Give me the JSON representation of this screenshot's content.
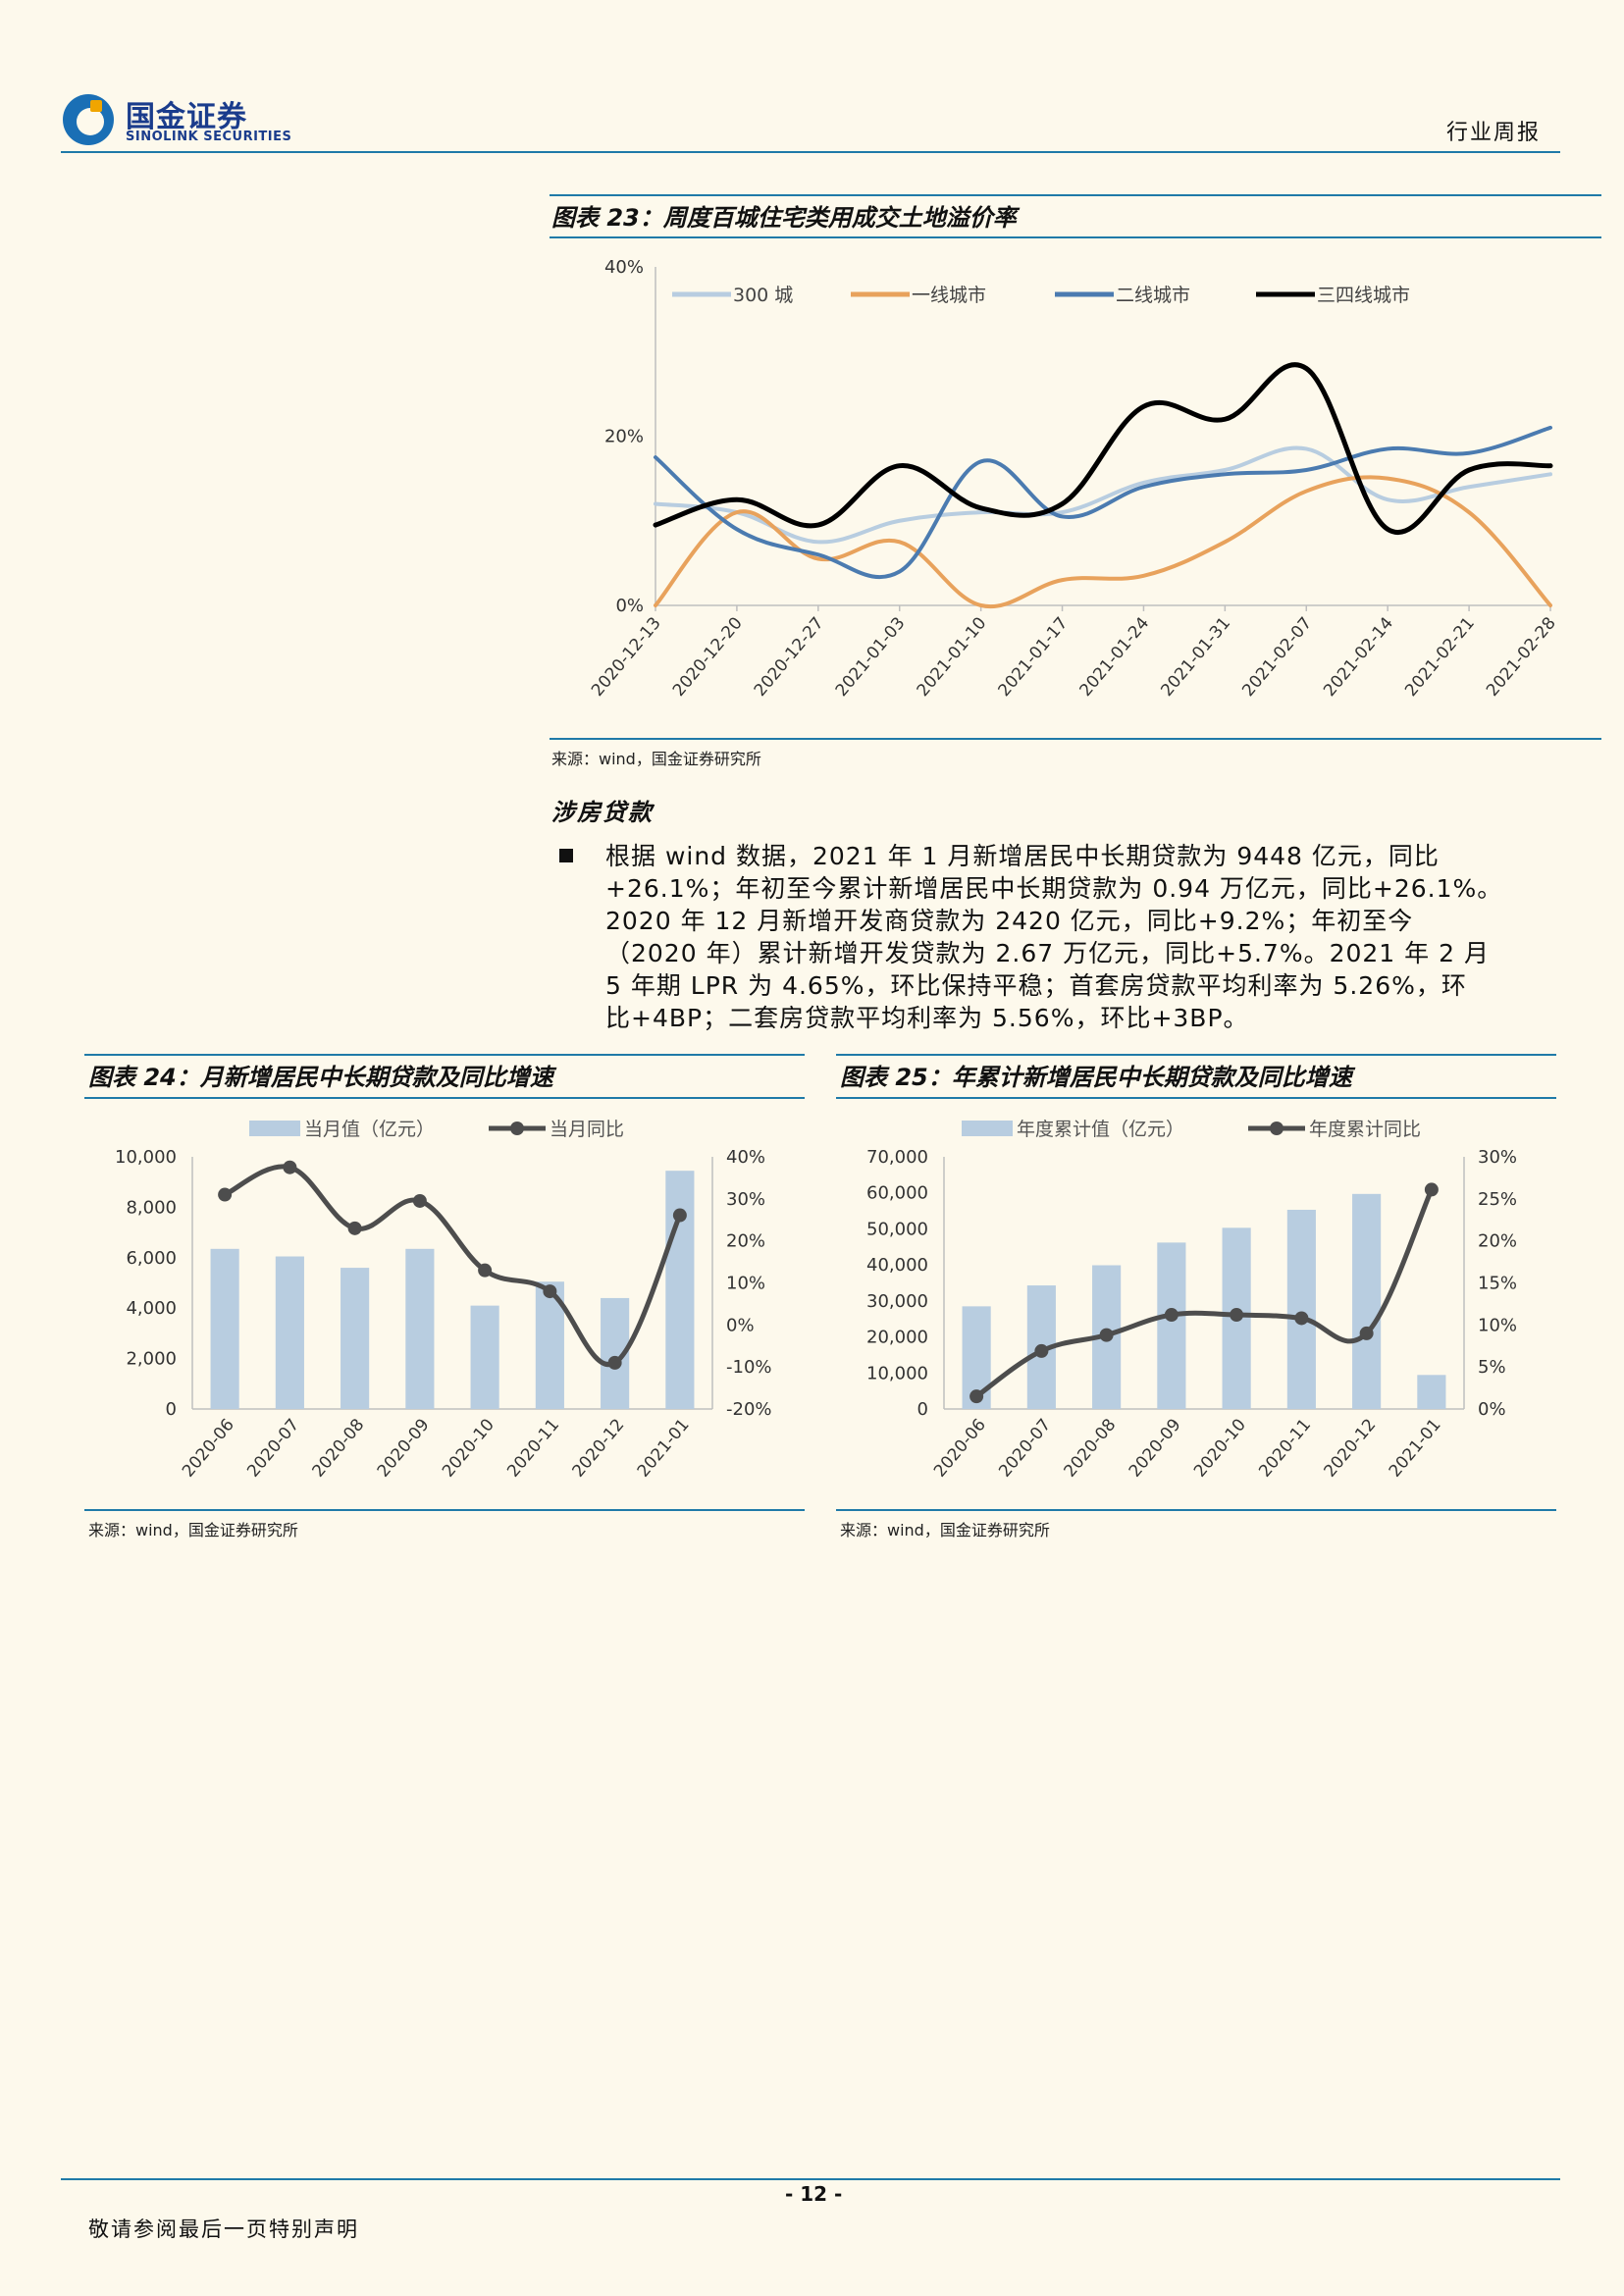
{
  "header": {
    "logo_cn": "国金证券",
    "logo_en": "SINOLINK SECURITIES",
    "report_type": "行业周报"
  },
  "figure23": {
    "caption": "图表 23：周度百城住宅类用成交土地溢价率",
    "source": "来源：wind，国金证券研究所"
  },
  "section": {
    "title": "涉房贷款",
    "paragraph": "根据 wind 数据，2021 年 1 月新增居民中长期贷款为 9448 亿元，同比+26.1%；年初至今累计新增居民中长期贷款为 0.94 万亿元，同比+26.1%。2020 年 12 月新增开发商贷款为 2420 亿元，同比+9.2%；年初至今（2020 年）累计新增开发贷款为 2.67 万亿元，同比+5.7%。2021 年 2 月 5 年期 LPR 为 4.65%，环比保持平稳；首套房贷款平均利率为 5.26%，环比+4BP；二套房贷款平均利率为 5.56%，环比+3BP。",
    "lines": [
      "根据 wind 数据，2021 年 1 月新增居民中长期贷款为 9448 亿元，同比",
      "+26.1%；年初至今累计新增居民中长期贷款为 0.94 万亿元，同比+26.1%。",
      "2020 年 12 月新增开发商贷款为 2420 亿元，同比+9.2%；年初至今",
      "（2020 年）累计新增开发贷款为 2.67 万亿元，同比+5.7%。2021 年 2 月",
      "5 年期 LPR 为 4.65%，环比保持平稳；首套房贷款平均利率为 5.26%，环",
      "比+4BP；二套房贷款平均利率为 5.56%，环比+3BP。"
    ]
  },
  "figure24": {
    "caption": "图表 24：月新增居民中长期贷款及同比增速",
    "source": "来源：wind，国金证券研究所"
  },
  "figure25": {
    "caption": "图表 25：年累计新增居民中长期贷款及同比增速",
    "source": "来源：wind，国金证券研究所"
  },
  "footer": {
    "page_number": "- 12 -",
    "disclaimer": "敬请参阅最后一页特别声明"
  },
  "colors": {
    "accent": "#1f7aa8",
    "bar": "#b8cde0",
    "line_dark": "#4d4d4d",
    "s300": "#b8cde0",
    "tier1": "#e8a25c",
    "tier2": "#4b7bb0",
    "tier34": "#000000"
  },
  "chart_data": [
    {
      "type": "line",
      "x": [
        "2020-12-13",
        "2020-12-20",
        "2020-12-27",
        "2021-01-03",
        "2021-01-10",
        "2021-01-17",
        "2021-01-24",
        "2021-01-31",
        "2021-02-07",
        "2021-02-14",
        "2021-02-21",
        "2021-02-28"
      ],
      "series": [
        {
          "name": "300 城",
          "values": [
            12,
            11,
            7.5,
            10,
            11,
            11,
            14.5,
            16,
            18.5,
            12.5,
            14,
            15.5
          ]
        },
        {
          "name": "一线城市",
          "values": [
            0,
            11,
            5.5,
            7.5,
            0,
            3,
            3.5,
            7.5,
            13.5,
            15,
            11,
            0
          ]
        },
        {
          "name": "二线城市",
          "values": [
            17.5,
            9,
            6,
            4,
            17,
            10.5,
            14,
            15.5,
            16,
            18.5,
            18,
            21
          ]
        },
        {
          "name": "三四线城市",
          "values": [
            9.5,
            12.5,
            9.5,
            16.5,
            11.5,
            12,
            23.5,
            22,
            28,
            9,
            16,
            16.5
          ]
        }
      ],
      "ylim": [
        0,
        40
      ],
      "yticks": [
        "0%",
        "20%",
        "40%"
      ],
      "legend": "top"
    },
    {
      "type": "bar",
      "categories": [
        "2020-06",
        "2020-07",
        "2020-08",
        "2020-09",
        "2020-10",
        "2020-11",
        "2020-12",
        "2021-01"
      ],
      "series": [
        {
          "name": "当月值（亿元）",
          "type": "bar",
          "axis": "left",
          "values": [
            6350,
            6050,
            5600,
            6350,
            4100,
            5050,
            4400,
            9448
          ]
        },
        {
          "name": "当月同比",
          "type": "line",
          "axis": "right",
          "values": [
            31,
            37.5,
            23,
            29.5,
            13,
            8,
            -9,
            26.1
          ]
        }
      ],
      "ylim_left": [
        0,
        10000
      ],
      "yticks_left": [
        "0",
        "2,000",
        "4,000",
        "6,000",
        "8,000",
        "10,000"
      ],
      "ylim_right": [
        -20,
        40
      ],
      "yticks_right": [
        "-20%",
        "-10%",
        "0%",
        "10%",
        "20%",
        "30%",
        "40%"
      ],
      "legend": "top"
    },
    {
      "type": "bar",
      "categories": [
        "2020-06",
        "2020-07",
        "2020-08",
        "2020-09",
        "2020-10",
        "2020-11",
        "2020-12",
        "2021-01"
      ],
      "series": [
        {
          "name": "年度累计值（亿元）",
          "type": "bar",
          "axis": "left",
          "values": [
            28500,
            34300,
            39900,
            46200,
            50300,
            55300,
            59700,
            9448
          ]
        },
        {
          "name": "年度累计同比",
          "type": "line",
          "axis": "right",
          "values": [
            1.5,
            6.9,
            8.8,
            11.2,
            11.2,
            10.8,
            9,
            26.1
          ]
        }
      ],
      "ylim_left": [
        0,
        70000
      ],
      "yticks_left": [
        "0",
        "10,000",
        "20,000",
        "30,000",
        "40,000",
        "50,000",
        "60,000",
        "70,000"
      ],
      "ylim_right": [
        0,
        30
      ],
      "yticks_right": [
        "0%",
        "5%",
        "10%",
        "15%",
        "20%",
        "25%",
        "30%"
      ],
      "legend": "top"
    }
  ]
}
